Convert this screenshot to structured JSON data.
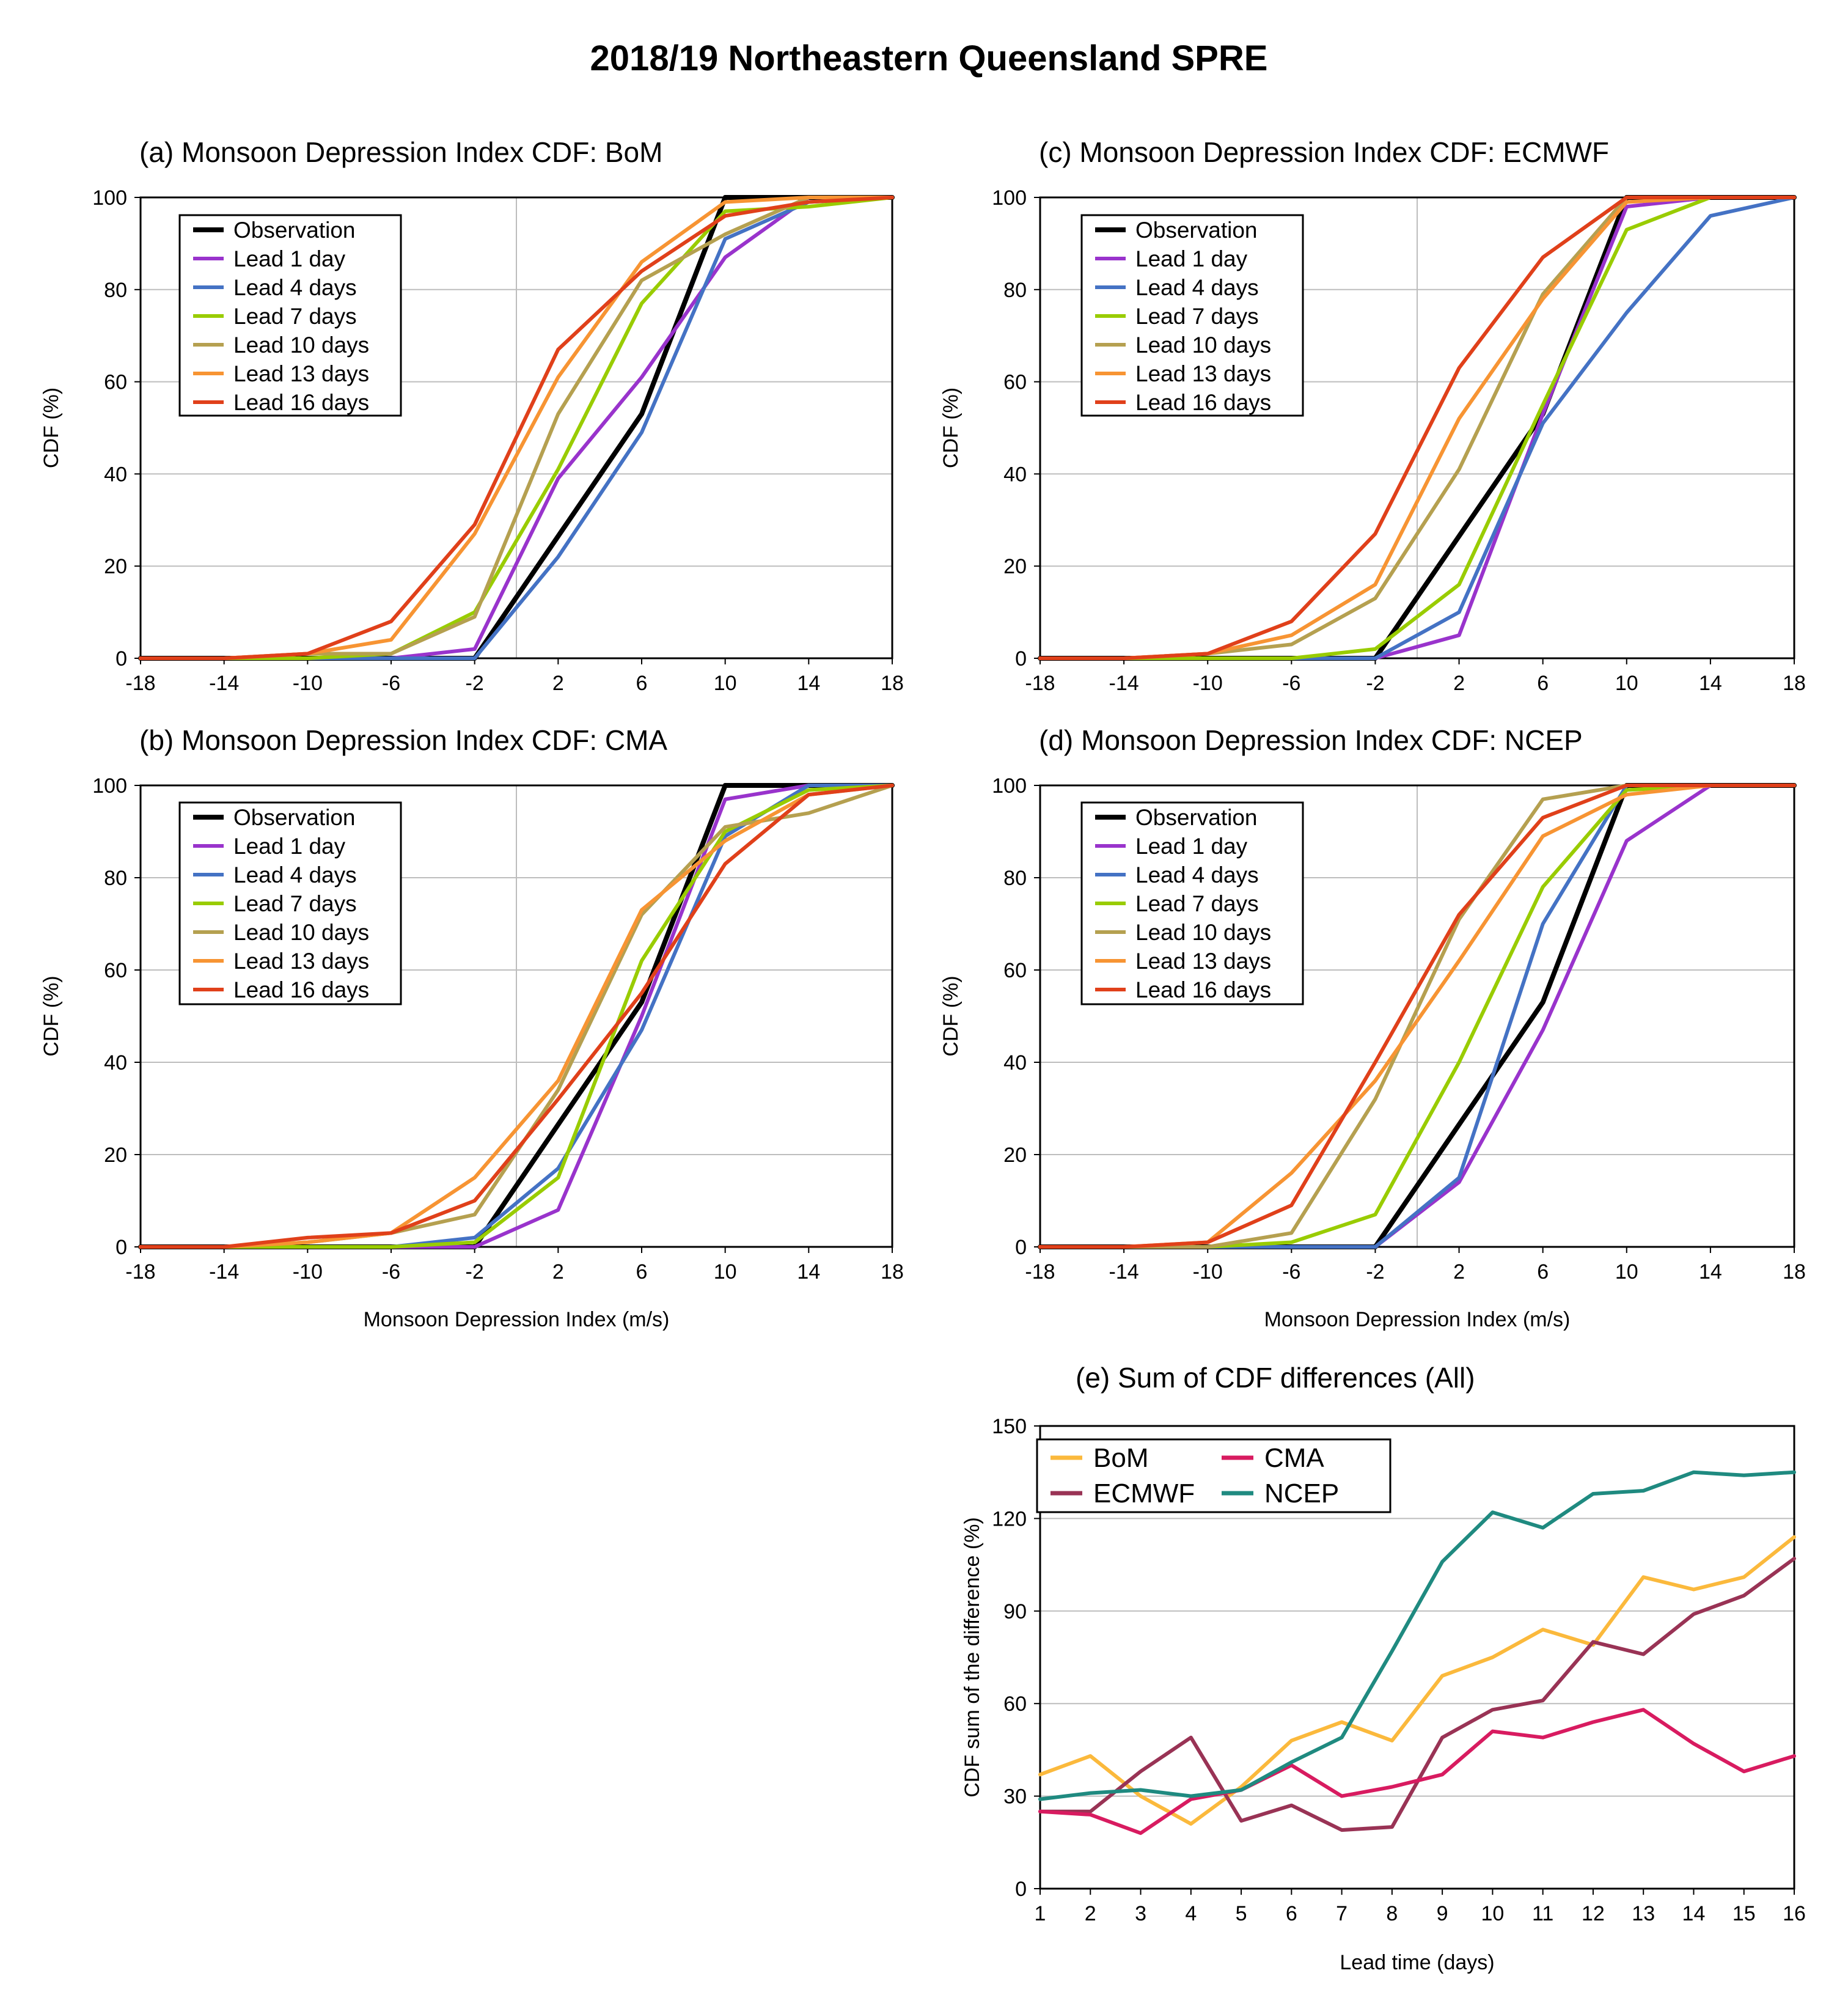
{
  "figure_title": "2018/19 Northeastern Queensland  SPRE",
  "colors": {
    "observation": "#000000",
    "lead1": "#9933cc",
    "lead4": "#4472c4",
    "lead7": "#99cc00",
    "lead10": "#b5a050",
    "lead13": "#f79433",
    "lead16": "#e0401a",
    "BoM": "#fbb93c",
    "CMA": "#d81b60",
    "ECMWF": "#993355",
    "NCEP": "#1f8a80",
    "grid": "#bdbdbd"
  },
  "chart_data": [
    {
      "id": "a",
      "type": "line",
      "title": "(a) Monsoon Depression Index CDF: BoM",
      "xlabel": "",
      "ylabel": "CDF (%)",
      "x": [
        -18,
        -14,
        -10,
        -6,
        -2,
        2,
        6,
        10,
        14,
        18
      ],
      "xticks": [
        "-18",
        "-14",
        "-10",
        "-6",
        "-2",
        "2",
        "6",
        "10",
        "14",
        "18"
      ],
      "yticks": [
        "0",
        "20",
        "40",
        "60",
        "80",
        "100"
      ],
      "xlim": [
        -18,
        18
      ],
      "ylim": [
        0,
        100
      ],
      "vline": 0,
      "legend": "top-left",
      "series": [
        {
          "name": "Observation",
          "color_key": "observation",
          "points": [
            [
              -18,
              0
            ],
            [
              -14,
              0
            ],
            [
              -10,
              0
            ],
            [
              -6,
              0
            ],
            [
              -2,
              0
            ],
            [
              6,
              53
            ],
            [
              10,
              100
            ],
            [
              14,
              100
            ],
            [
              18,
              100
            ]
          ]
        },
        {
          "name": "Lead  1 day",
          "color_key": "lead1",
          "values": [
            0,
            0,
            0,
            0,
            2,
            39,
            61,
            87,
            100,
            100
          ]
        },
        {
          "name": "Lead  4 days",
          "color_key": "lead4",
          "values": [
            0,
            0,
            0,
            0,
            0,
            22,
            49,
            91,
            99,
            100
          ]
        },
        {
          "name": "Lead  7 days",
          "color_key": "lead7",
          "values": [
            0,
            0,
            0,
            1,
            10,
            41,
            77,
            97,
            98,
            100
          ]
        },
        {
          "name": "Lead 10 days",
          "color_key": "lead10",
          "values": [
            0,
            0,
            1,
            1,
            9,
            53,
            82,
            92,
            100,
            100
          ]
        },
        {
          "name": "Lead 13 days",
          "color_key": "lead13",
          "values": [
            0,
            0,
            1,
            4,
            27,
            61,
            86,
            99,
            100,
            100
          ]
        },
        {
          "name": "Lead 16 days",
          "color_key": "lead16",
          "values": [
            0,
            0,
            1,
            8,
            29,
            67,
            84,
            96,
            99,
            100
          ]
        }
      ]
    },
    {
      "id": "b",
      "type": "line",
      "title": "(b) Monsoon Depression Index CDF: CMA",
      "xlabel": "Monsoon Depression Index (m/s)",
      "ylabel": "CDF (%)",
      "x": [
        -18,
        -14,
        -10,
        -6,
        -2,
        2,
        6,
        10,
        14,
        18
      ],
      "xticks": [
        "-18",
        "-14",
        "-10",
        "-6",
        "-2",
        "2",
        "6",
        "10",
        "14",
        "18"
      ],
      "yticks": [
        "0",
        "20",
        "40",
        "60",
        "80",
        "100"
      ],
      "xlim": [
        -18,
        18
      ],
      "ylim": [
        0,
        100
      ],
      "vline": 0,
      "legend": "top-left",
      "series": [
        {
          "name": "Observation",
          "color_key": "observation",
          "points": [
            [
              -18,
              0
            ],
            [
              -14,
              0
            ],
            [
              -10,
              0
            ],
            [
              -6,
              0
            ],
            [
              -2,
              0
            ],
            [
              6,
              53
            ],
            [
              10,
              100
            ],
            [
              14,
              100
            ],
            [
              18,
              100
            ]
          ]
        },
        {
          "name": "Lead  1 day",
          "color_key": "lead1",
          "values": [
            0,
            0,
            0,
            0,
            0,
            8,
            50,
            97,
            100,
            100
          ]
        },
        {
          "name": "Lead  4 days",
          "color_key": "lead4",
          "values": [
            0,
            0,
            0,
            0,
            2,
            17,
            47,
            89,
            100,
            100
          ]
        },
        {
          "name": "Lead  7 days",
          "color_key": "lead7",
          "values": [
            0,
            0,
            0,
            0,
            1,
            15,
            62,
            90,
            99,
            100
          ]
        },
        {
          "name": "Lead 10 days",
          "color_key": "lead10",
          "values": [
            0,
            0,
            1,
            3,
            7,
            34,
            72,
            91,
            94,
            100
          ]
        },
        {
          "name": "Lead 13 days",
          "color_key": "lead13",
          "values": [
            0,
            0,
            1,
            3,
            15,
            36,
            73,
            88,
            98,
            100
          ]
        },
        {
          "name": "Lead 16 days",
          "color_key": "lead16",
          "values": [
            0,
            0,
            2,
            3,
            10,
            32,
            55,
            83,
            98,
            100
          ]
        }
      ]
    },
    {
      "id": "c",
      "type": "line",
      "title": "(c) Monsoon Depression Index CDF: ECMWF",
      "xlabel": "",
      "ylabel": "CDF (%)",
      "x": [
        -18,
        -14,
        -10,
        -6,
        -2,
        2,
        6,
        10,
        14,
        18
      ],
      "xticks": [
        "-18",
        "-14",
        "-10",
        "-6",
        "-2",
        "2",
        "6",
        "10",
        "14",
        "18"
      ],
      "yticks": [
        "0",
        "20",
        "40",
        "60",
        "80",
        "100"
      ],
      "xlim": [
        -18,
        18
      ],
      "ylim": [
        0,
        100
      ],
      "vline": 0,
      "legend": "top-left",
      "series": [
        {
          "name": "Observation",
          "color_key": "observation",
          "points": [
            [
              -18,
              0
            ],
            [
              -14,
              0
            ],
            [
              -10,
              0
            ],
            [
              -6,
              0
            ],
            [
              -2,
              0
            ],
            [
              6,
              53
            ],
            [
              10,
              100
            ],
            [
              14,
              100
            ],
            [
              18,
              100
            ]
          ]
        },
        {
          "name": "Lead  1 day",
          "color_key": "lead1",
          "values": [
            0,
            0,
            0,
            0,
            0,
            5,
            53,
            98,
            100,
            100
          ]
        },
        {
          "name": "Lead  4 days",
          "color_key": "lead4",
          "values": [
            0,
            0,
            0,
            0,
            0,
            10,
            51,
            75,
            96,
            100
          ]
        },
        {
          "name": "Lead  7 days",
          "color_key": "lead7",
          "values": [
            0,
            0,
            0,
            0,
            2,
            16,
            55,
            93,
            100,
            100
          ]
        },
        {
          "name": "Lead 10 days",
          "color_key": "lead10",
          "values": [
            0,
            0,
            1,
            3,
            13,
            41,
            79,
            100,
            100,
            100
          ]
        },
        {
          "name": "Lead 13 days",
          "color_key": "lead13",
          "values": [
            0,
            0,
            1,
            5,
            16,
            52,
            78,
            99,
            100,
            100
          ]
        },
        {
          "name": "Lead 16 days",
          "color_key": "lead16",
          "values": [
            0,
            0,
            1,
            8,
            27,
            63,
            87,
            100,
            100,
            100
          ]
        }
      ]
    },
    {
      "id": "d",
      "type": "line",
      "title": "(d) Monsoon Depression Index CDF: NCEP",
      "xlabel": "Monsoon Depression Index (m/s)",
      "ylabel": "CDF (%)",
      "x": [
        -18,
        -14,
        -10,
        -6,
        -2,
        2,
        6,
        10,
        14,
        18
      ],
      "xticks": [
        "-18",
        "-14",
        "-10",
        "-6",
        "-2",
        "2",
        "6",
        "10",
        "14",
        "18"
      ],
      "yticks": [
        "0",
        "20",
        "40",
        "60",
        "80",
        "100"
      ],
      "xlim": [
        -18,
        18
      ],
      "ylim": [
        0,
        100
      ],
      "vline": 0,
      "legend": "top-left",
      "series": [
        {
          "name": "Observation",
          "color_key": "observation",
          "points": [
            [
              -18,
              0
            ],
            [
              -14,
              0
            ],
            [
              -10,
              0
            ],
            [
              -6,
              0
            ],
            [
              -2,
              0
            ],
            [
              6,
              53
            ],
            [
              10,
              100
            ],
            [
              14,
              100
            ],
            [
              18,
              100
            ]
          ]
        },
        {
          "name": "Lead  1 day",
          "color_key": "lead1",
          "values": [
            0,
            0,
            0,
            0,
            0,
            14,
            47,
            88,
            100,
            100
          ]
        },
        {
          "name": "Lead  4 days",
          "color_key": "lead4",
          "values": [
            0,
            0,
            0,
            0,
            0,
            15,
            70,
            100,
            100,
            100
          ]
        },
        {
          "name": "Lead  7 days",
          "color_key": "lead7",
          "values": [
            0,
            0,
            0,
            1,
            7,
            40,
            78,
            99,
            100,
            100
          ]
        },
        {
          "name": "Lead 10 days",
          "color_key": "lead10",
          "values": [
            0,
            0,
            0,
            3,
            32,
            71,
            97,
            100,
            100,
            100
          ]
        },
        {
          "name": "Lead 13 days",
          "color_key": "lead13",
          "values": [
            0,
            0,
            1,
            16,
            36,
            62,
            89,
            98,
            100,
            100
          ]
        },
        {
          "name": "Lead 16 days",
          "color_key": "lead16",
          "values": [
            0,
            0,
            1,
            9,
            40,
            72,
            93,
            100,
            100,
            100
          ]
        }
      ]
    },
    {
      "id": "e",
      "type": "line",
      "title": "(e) Sum of CDF differences (All)",
      "xlabel": "Lead time (days)",
      "ylabel": "CDF sum of the difference (%)",
      "x": [
        1,
        2,
        3,
        4,
        5,
        6,
        7,
        8,
        9,
        10,
        11,
        12,
        13,
        14,
        15,
        16
      ],
      "xticks": [
        "1",
        "2",
        "3",
        "4",
        "5",
        "6",
        "7",
        "8",
        "9",
        "10",
        "11",
        "12",
        "13",
        "14",
        "15",
        "16"
      ],
      "yticks": [
        "0",
        "30",
        "60",
        "90",
        "120",
        "150"
      ],
      "xlim": [
        1,
        16
      ],
      "ylim": [
        0,
        150
      ],
      "legend": "top-left",
      "series": [
        {
          "name": "BoM",
          "color_key": "BoM",
          "values": [
            37,
            43,
            30,
            21,
            33,
            48,
            54,
            48,
            69,
            75,
            84,
            79,
            101,
            97,
            101,
            114
          ]
        },
        {
          "name": "ECMWF",
          "color_key": "ECMWF",
          "values": [
            25,
            25,
            38,
            49,
            22,
            27,
            19,
            20,
            49,
            58,
            61,
            80,
            76,
            89,
            95,
            107
          ]
        },
        {
          "name": "CMA",
          "color_key": "CMA",
          "values": [
            25,
            24,
            18,
            29,
            32,
            40,
            30,
            33,
            37,
            51,
            49,
            54,
            58,
            47,
            38,
            43
          ]
        },
        {
          "name": "NCEP",
          "color_key": "NCEP",
          "values": [
            29,
            31,
            32,
            30,
            32,
            41,
            49,
            77,
            106,
            122,
            117,
            128,
            129,
            135,
            134,
            135
          ]
        }
      ]
    }
  ]
}
